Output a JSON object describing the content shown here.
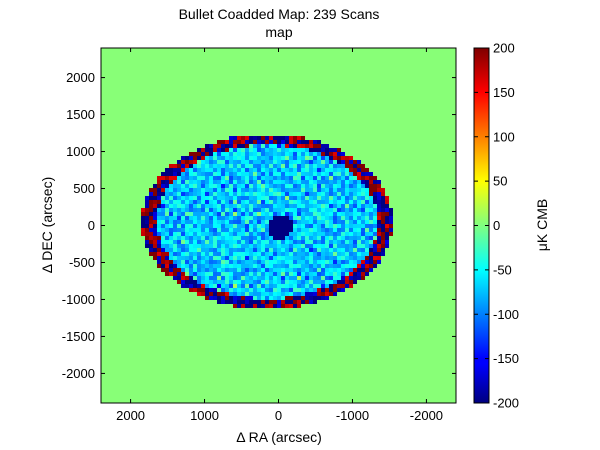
{
  "chart_data": {
    "type": "heatmap",
    "title": "Bullet Coadded Map: 239 Scans",
    "subtitle": "map",
    "xlabel": "Δ RA (arcsec)",
    "ylabel": "Δ DEC (arcsec)",
    "xlim": [
      2400,
      -2400
    ],
    "ylim": [
      -2400,
      2400
    ],
    "x_ticks": [
      2000,
      1000,
      0,
      -1000,
      -2000
    ],
    "y_ticks": [
      2000,
      1500,
      1000,
      500,
      0,
      -500,
      -1000,
      -1500,
      -2000
    ],
    "colorbar": {
      "label": "μK CMB",
      "range": [
        -200,
        200
      ],
      "ticks": [
        200,
        150,
        100,
        50,
        0,
        -50,
        -100,
        -150,
        -200
      ],
      "colormap": "jet"
    },
    "features": {
      "field_center_ra": 150,
      "field_center_dec": 50,
      "field_radius_ra": 1650,
      "field_radius_dec": 1150,
      "central_decrement": {
        "ra": 0,
        "dec": 0,
        "value": -200
      }
    },
    "background_color": "#88ff77",
    "grid": false
  }
}
